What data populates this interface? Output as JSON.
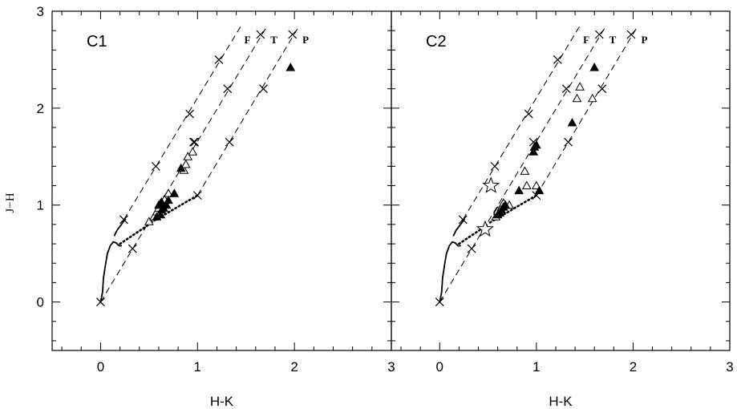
{
  "chart_data": [
    {
      "type": "scatter",
      "panel_label": "C1",
      "xlabel": "H-K",
      "ylabel": "J−H",
      "xlim": [
        -0.5,
        3.0
      ],
      "ylim": [
        -0.5,
        3.0
      ],
      "x_ticks": [
        "0",
        "1",
        "2",
        "3"
      ],
      "y_ticks": [
        "0",
        "1",
        "2",
        "3"
      ],
      "reddening_vectors": [
        {
          "label": "F",
          "start": [
            0.24,
            0.85
          ],
          "end": [
            1.45,
            2.85
          ]
        },
        {
          "label": "T",
          "start": [
            0.0,
            0.0
          ],
          "end": [
            1.72,
            2.85
          ]
        },
        {
          "label": "P",
          "start": [
            1.0,
            1.1
          ],
          "end": [
            2.05,
            2.85
          ]
        }
      ],
      "x_markers": [
        [
          0.0,
          0.0
        ],
        [
          0.33,
          0.55
        ],
        [
          0.24,
          0.85
        ],
        [
          1.0,
          1.1
        ],
        [
          0.57,
          1.4
        ],
        [
          0.97,
          1.65
        ],
        [
          1.33,
          1.65
        ],
        [
          0.96,
          1.65
        ],
        [
          0.92,
          1.94
        ],
        [
          1.31,
          2.2
        ],
        [
          1.68,
          2.2
        ],
        [
          1.22,
          2.5
        ],
        [
          1.65,
          2.76
        ],
        [
          1.98,
          2.76
        ]
      ],
      "ctts_locus": [
        [
          0.52,
          0.82
        ],
        [
          1.0,
          1.1
        ]
      ],
      "filled_triangles": [
        [
          0.58,
          0.88
        ],
        [
          0.62,
          0.9
        ],
        [
          0.63,
          0.95
        ],
        [
          0.65,
          0.97
        ],
        [
          0.6,
          1.0
        ],
        [
          0.63,
          1.03
        ],
        [
          0.68,
          1.0
        ],
        [
          0.7,
          1.05
        ],
        [
          0.76,
          1.12
        ],
        [
          0.83,
          1.38
        ],
        [
          1.96,
          2.42
        ]
      ],
      "open_triangles": [
        [
          0.5,
          0.83
        ],
        [
          0.55,
          0.88
        ],
        [
          0.58,
          0.93
        ],
        [
          0.6,
          0.97
        ],
        [
          0.62,
          1.02
        ],
        [
          0.66,
          1.06
        ],
        [
          0.7,
          1.12
        ],
        [
          0.86,
          1.36
        ],
        [
          0.88,
          1.42
        ],
        [
          0.9,
          1.5
        ],
        [
          0.95,
          1.55
        ]
      ],
      "stars": []
    },
    {
      "type": "scatter",
      "panel_label": "C2",
      "xlabel": "H-K",
      "ylabel": "",
      "xlim": [
        -0.5,
        3.0
      ],
      "ylim": [
        -0.5,
        3.0
      ],
      "x_ticks": [
        "0",
        "1",
        "2",
        "3"
      ],
      "y_ticks": [],
      "reddening_vectors": [
        {
          "label": "F",
          "start": [
            0.24,
            0.85
          ],
          "end": [
            1.45,
            2.85
          ]
        },
        {
          "label": "T",
          "start": [
            0.0,
            0.0
          ],
          "end": [
            1.72,
            2.85
          ]
        },
        {
          "label": "P",
          "start": [
            1.0,
            1.1
          ],
          "end": [
            2.05,
            2.85
          ]
        }
      ],
      "x_markers": [
        [
          0.0,
          0.0
        ],
        [
          0.33,
          0.55
        ],
        [
          0.24,
          0.85
        ],
        [
          1.0,
          1.1
        ],
        [
          0.57,
          1.4
        ],
        [
          0.97,
          1.65
        ],
        [
          1.33,
          1.65
        ],
        [
          0.92,
          1.94
        ],
        [
          1.31,
          2.2
        ],
        [
          1.68,
          2.2
        ],
        [
          1.22,
          2.5
        ],
        [
          1.65,
          2.76
        ],
        [
          1.98,
          2.76
        ]
      ],
      "ctts_locus": [
        [
          0.52,
          0.82
        ],
        [
          1.0,
          1.1
        ]
      ],
      "filled_triangles": [
        [
          0.6,
          0.9
        ],
        [
          0.62,
          0.92
        ],
        [
          0.64,
          0.95
        ],
        [
          0.66,
          0.98
        ],
        [
          0.68,
          1.0
        ],
        [
          0.82,
          1.15
        ],
        [
          0.97,
          1.55
        ],
        [
          0.98,
          1.6
        ],
        [
          1.0,
          1.62
        ],
        [
          1.03,
          1.15
        ],
        [
          1.37,
          1.85
        ],
        [
          1.6,
          2.42
        ]
      ],
      "open_triangles": [
        [
          0.58,
          0.88
        ],
        [
          0.6,
          0.94
        ],
        [
          0.64,
          0.98
        ],
        [
          0.66,
          1.02
        ],
        [
          0.72,
          1.0
        ],
        [
          0.88,
          1.35
        ],
        [
          0.9,
          1.2
        ],
        [
          1.0,
          1.2
        ],
        [
          1.42,
          2.1
        ],
        [
          1.45,
          2.22
        ],
        [
          1.58,
          2.1
        ]
      ],
      "stars": [
        [
          0.53,
          1.2
        ],
        [
          0.47,
          0.75
        ]
      ]
    }
  ]
}
